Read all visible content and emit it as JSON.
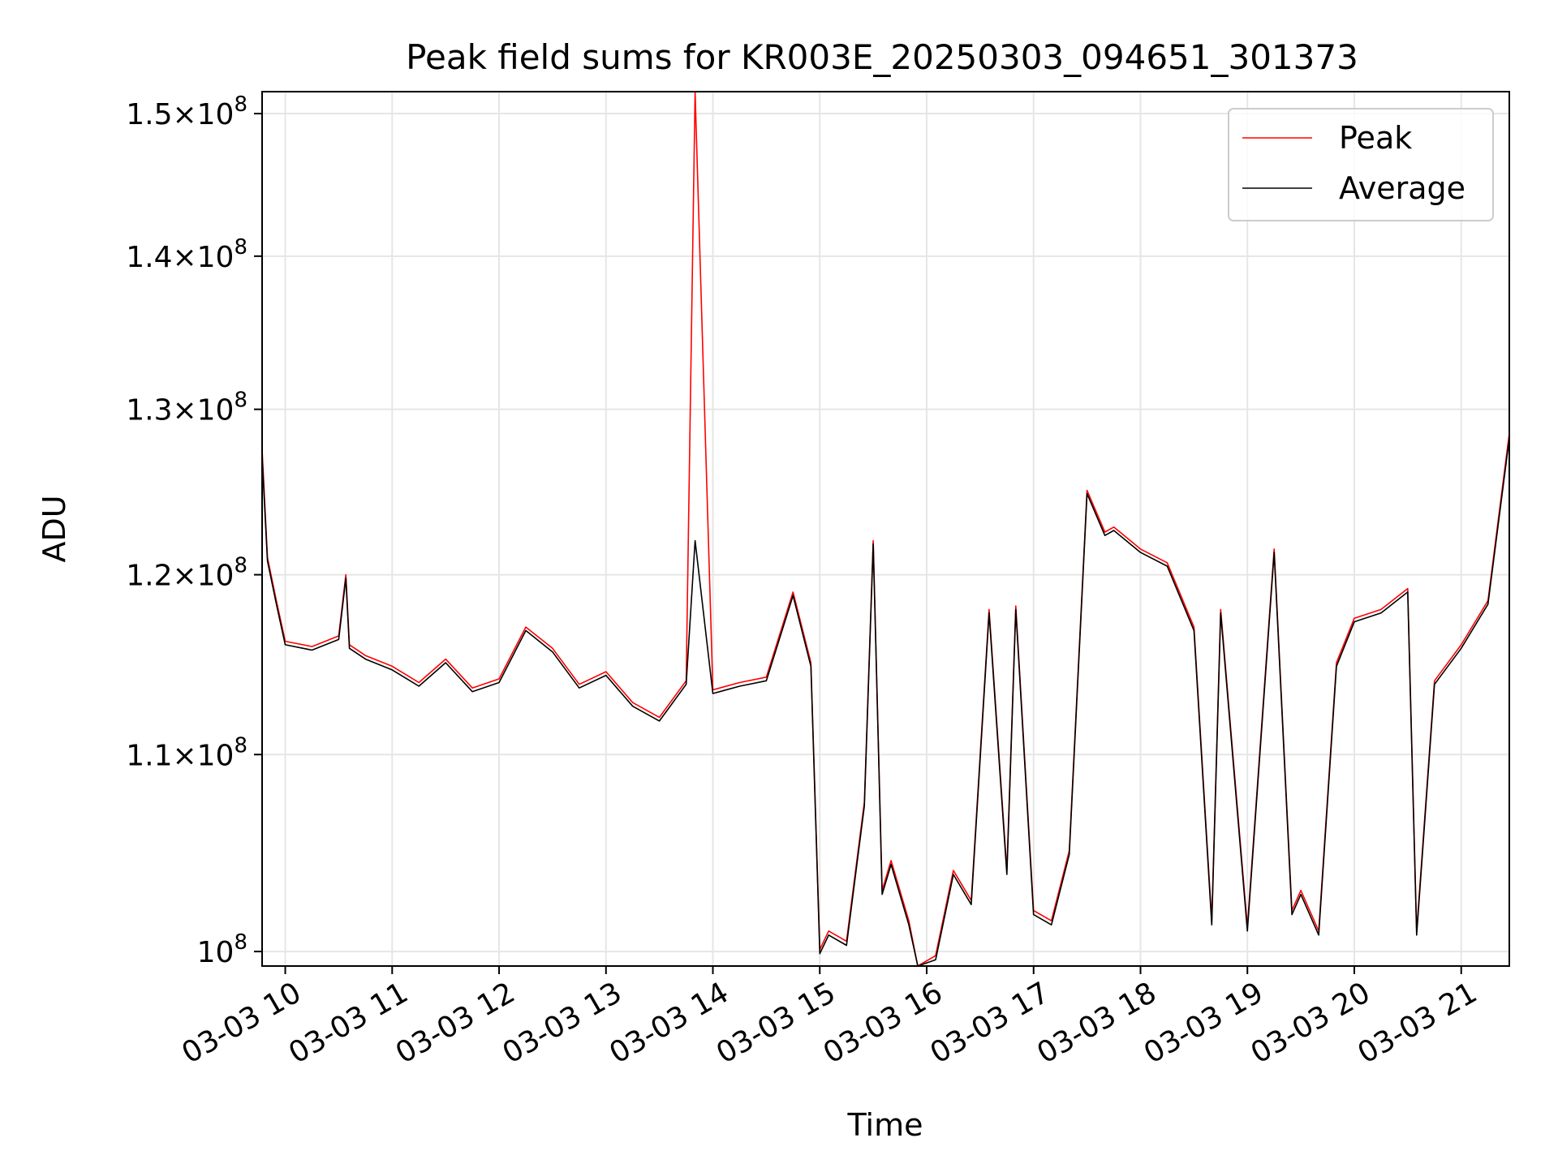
{
  "chart_data": {
    "type": "line",
    "title": "Peak field sums for KR003E_20250303_094651_301373",
    "xlabel": "Time",
    "ylabel": "ADU",
    "y_scale": "log",
    "ylim": [
      99300000,
      151600000
    ],
    "xlim": [
      "2025-03-03 09:47",
      "2025-03-03 21:27"
    ],
    "grid": true,
    "legend_position": "top-right",
    "x_ticks": [
      {
        "value": "2025-03-03 10:00",
        "label": "03-03 10"
      },
      {
        "value": "2025-03-03 11:00",
        "label": "03-03 11"
      },
      {
        "value": "2025-03-03 12:00",
        "label": "03-03 12"
      },
      {
        "value": "2025-03-03 13:00",
        "label": "03-03 13"
      },
      {
        "value": "2025-03-03 14:00",
        "label": "03-03 14"
      },
      {
        "value": "2025-03-03 15:00",
        "label": "03-03 15"
      },
      {
        "value": "2025-03-03 16:00",
        "label": "03-03 16"
      },
      {
        "value": "2025-03-03 17:00",
        "label": "03-03 17"
      },
      {
        "value": "2025-03-03 18:00",
        "label": "03-03 18"
      },
      {
        "value": "2025-03-03 19:00",
        "label": "03-03 19"
      },
      {
        "value": "2025-03-03 20:00",
        "label": "03-03 20"
      },
      {
        "value": "2025-03-03 21:00",
        "label": "03-03 21"
      }
    ],
    "y_ticks": [
      {
        "value": 100000000,
        "mantissa": "",
        "exponent": "8"
      },
      {
        "value": 110000000,
        "mantissa": "1.1",
        "exponent": "8"
      },
      {
        "value": 120000000,
        "mantissa": "1.2",
        "exponent": "8"
      },
      {
        "value": 130000000,
        "mantissa": "1.3",
        "exponent": "8"
      },
      {
        "value": 140000000,
        "mantissa": "1.4",
        "exponent": "8"
      },
      {
        "value": 150000000,
        "mantissa": "1.5",
        "exponent": "8"
      }
    ],
    "x": [
      "2025-03-03 09:47",
      "2025-03-03 09:50",
      "2025-03-03 09:55",
      "2025-03-03 10:00",
      "2025-03-03 10:15",
      "2025-03-03 10:30",
      "2025-03-03 10:34",
      "2025-03-03 10:36",
      "2025-03-03 10:45",
      "2025-03-03 11:00",
      "2025-03-03 11:15",
      "2025-03-03 11:30",
      "2025-03-03 11:45",
      "2025-03-03 12:00",
      "2025-03-03 12:15",
      "2025-03-03 12:30",
      "2025-03-03 12:45",
      "2025-03-03 13:00",
      "2025-03-03 13:15",
      "2025-03-03 13:30",
      "2025-03-03 13:45",
      "2025-03-03 13:50",
      "2025-03-03 14:00",
      "2025-03-03 14:15",
      "2025-03-03 14:30",
      "2025-03-03 14:45",
      "2025-03-03 14:55",
      "2025-03-03 15:00",
      "2025-03-03 15:05",
      "2025-03-03 15:15",
      "2025-03-03 15:25",
      "2025-03-03 15:30",
      "2025-03-03 15:35",
      "2025-03-03 15:40",
      "2025-03-03 15:50",
      "2025-03-03 15:55",
      "2025-03-03 16:05",
      "2025-03-03 16:15",
      "2025-03-03 16:25",
      "2025-03-03 16:35",
      "2025-03-03 16:45",
      "2025-03-03 16:50",
      "2025-03-03 17:00",
      "2025-03-03 17:10",
      "2025-03-03 17:20",
      "2025-03-03 17:30",
      "2025-03-03 17:40",
      "2025-03-03 17:45",
      "2025-03-03 18:00",
      "2025-03-03 18:15",
      "2025-03-03 18:30",
      "2025-03-03 18:40",
      "2025-03-03 18:45",
      "2025-03-03 19:00",
      "2025-03-03 19:15",
      "2025-03-03 19:25",
      "2025-03-03 19:30",
      "2025-03-03 19:40",
      "2025-03-03 19:50",
      "2025-03-03 20:00",
      "2025-03-03 20:15",
      "2025-03-03 20:30",
      "2025-03-03 20:35",
      "2025-03-03 20:45",
      "2025-03-03 21:00",
      "2025-03-03 21:15",
      "2025-03-03 21:27"
    ],
    "series": [
      {
        "name": "Peak",
        "color": "#ff0000",
        "values": [
          127500000,
          121000000,
          118500000,
          116200000,
          115900000,
          116500000,
          120000000,
          116000000,
          115400000,
          114800000,
          113900000,
          115200000,
          113600000,
          114100000,
          117000000,
          115800000,
          113800000,
          114500000,
          112800000,
          112000000,
          114000000,
          151600000,
          113500000,
          113900000,
          114200000,
          119000000,
          115000000,
          100100000,
          101000000,
          100500000,
          107500000,
          122000000,
          103000000,
          104500000,
          101500000,
          99300000,
          99800000,
          104000000,
          102500000,
          118000000,
          104000000,
          118200000,
          102000000,
          101500000,
          105000000,
          125000000,
          122500000,
          122800000,
          121500000,
          120700000,
          117000000,
          101500000,
          118000000,
          101200000,
          121500000,
          102000000,
          103000000,
          101000000,
          115000000,
          117500000,
          118000000,
          119200000,
          101000000,
          114000000,
          116000000,
          118500000,
          128500000
        ]
      },
      {
        "name": "Average",
        "color": "#000000",
        "values": [
          127000000,
          120800000,
          118300000,
          116000000,
          115700000,
          116300000,
          119800000,
          115800000,
          115200000,
          114600000,
          113700000,
          115000000,
          113400000,
          113900000,
          116800000,
          115600000,
          113600000,
          114300000,
          112600000,
          111800000,
          113800000,
          122000000,
          113300000,
          113700000,
          114000000,
          118800000,
          114800000,
          99900000,
          100800000,
          100300000,
          107300000,
          121800000,
          102800000,
          104300000,
          101300000,
          99300000,
          99600000,
          103800000,
          102300000,
          117800000,
          103800000,
          118000000,
          101800000,
          101300000,
          104800000,
          124800000,
          122300000,
          122600000,
          121300000,
          120500000,
          116800000,
          101300000,
          117800000,
          101000000,
          121300000,
          101800000,
          102800000,
          100800000,
          114800000,
          117300000,
          117800000,
          119000000,
          100800000,
          113800000,
          115800000,
          118300000,
          128200000
        ]
      }
    ]
  }
}
